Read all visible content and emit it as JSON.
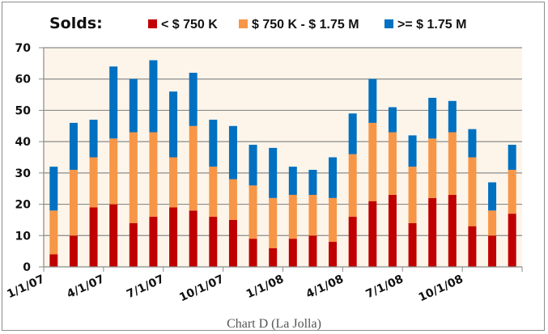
{
  "chart_data": {
    "type": "bar",
    "stacked": true,
    "title": "Solds:",
    "caption": "Chart D (La Jolla)",
    "xlabel": "",
    "ylabel": "",
    "ylim": [
      0,
      70
    ],
    "yticks": [
      0,
      10,
      20,
      30,
      40,
      50,
      60,
      70
    ],
    "grid": true,
    "legend_position": "top",
    "x_tick_labels": [
      "1/1/07",
      "4/1/07",
      "7/1/07",
      "10/1/07",
      "1/1/08",
      "4/1/08",
      "7/1/08",
      "10/1/08"
    ],
    "categories": [
      "2007-01",
      "2007-02",
      "2007-03",
      "2007-04",
      "2007-05",
      "2007-06",
      "2007-07",
      "2007-08",
      "2007-09",
      "2007-10",
      "2007-11",
      "2007-12",
      "2008-01",
      "2008-02",
      "2008-03",
      "2008-04",
      "2008-05",
      "2008-06",
      "2008-07",
      "2008-08",
      "2008-09",
      "2008-10",
      "2008-11",
      "2008-12"
    ],
    "series": [
      {
        "name": "< $ 750 K",
        "color": "#c00000",
        "values": [
          4,
          10,
          19,
          20,
          14,
          16,
          19,
          18,
          16,
          15,
          9,
          6,
          9,
          10,
          8,
          16,
          21,
          23,
          14,
          22,
          23,
          13,
          10,
          17
        ]
      },
      {
        "name": "$ 750 K - $ 1.75 M",
        "color": "#f79646",
        "values": [
          14,
          21,
          16,
          21,
          29,
          27,
          16,
          27,
          16,
          13,
          17,
          16,
          14,
          13,
          14,
          20,
          25,
          20,
          18,
          19,
          20,
          22,
          8,
          14
        ]
      },
      {
        "name": ">=  $ 1.75 M",
        "color": "#0070c0",
        "values": [
          14,
          15,
          12,
          23,
          17,
          23,
          21,
          17,
          15,
          17,
          13,
          16,
          9,
          8,
          13,
          13,
          14,
          8,
          10,
          13,
          10,
          9,
          9,
          8
        ]
      }
    ]
  }
}
